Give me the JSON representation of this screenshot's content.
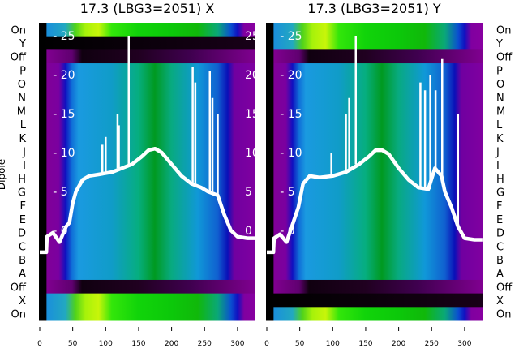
{
  "chart_data": [
    {
      "type": "heatmap",
      "title": "17.3 (LBG3=2051) X",
      "ylabel": "Dipole",
      "row_labels": [
        "On",
        "Y",
        "Off",
        "P",
        "O",
        "N",
        "M",
        "L",
        "K",
        "J",
        "I",
        "H",
        "G",
        "F",
        "E",
        "D",
        "C",
        "B",
        "A",
        "Off",
        "X",
        "On"
      ],
      "row_kinds": [
        "on",
        "dark",
        "off",
        "beam",
        "beam",
        "beam",
        "beam",
        "beam",
        "beam",
        "beam",
        "beam",
        "beam",
        "beam",
        "beam",
        "beam",
        "beam",
        "beam",
        "beam",
        "beam",
        "off",
        "on",
        "on"
      ],
      "xlim": [
        0,
        327
      ],
      "xticks": [
        "0",
        "50",
        "100",
        "150",
        "200",
        "250",
        "300"
      ],
      "line_ticks": [
        "0",
        "5",
        "10",
        "15",
        "20",
        "25"
      ],
      "line_ylim": [
        -11.5,
        26.7
      ],
      "line": [
        [
          0,
          -2.8
        ],
        [
          10,
          -2.8
        ],
        [
          11,
          -0.8
        ],
        [
          20,
          -0.3
        ],
        [
          30,
          -1.5
        ],
        [
          40,
          0.5
        ],
        [
          45,
          1
        ],
        [
          50,
          3.5
        ],
        [
          55,
          5
        ],
        [
          65,
          6.5
        ],
        [
          75,
          7
        ],
        [
          90,
          7.2
        ],
        [
          110,
          7.5
        ],
        [
          125,
          8
        ],
        [
          140,
          8.5
        ],
        [
          155,
          9.5
        ],
        [
          165,
          10.3
        ],
        [
          175,
          10.5
        ],
        [
          185,
          10
        ],
        [
          200,
          8.5
        ],
        [
          215,
          7
        ],
        [
          230,
          6
        ],
        [
          245,
          5.5
        ],
        [
          255,
          5
        ],
        [
          270,
          4.5
        ],
        [
          280,
          2
        ],
        [
          290,
          0
        ],
        [
          300,
          -0.8
        ],
        [
          315,
          -1
        ],
        [
          327,
          -1
        ]
      ],
      "spikes": [
        [
          95,
          11
        ],
        [
          100,
          12
        ],
        [
          118,
          15
        ],
        [
          120,
          13.5
        ],
        [
          135,
          25
        ],
        [
          232,
          21
        ],
        [
          236,
          19
        ],
        [
          258,
          20.5
        ],
        [
          262,
          17
        ],
        [
          270,
          15
        ]
      ]
    },
    {
      "type": "heatmap",
      "title": "17.3 (LBG3=2051) Y",
      "row_labels": [
        "On",
        "Y",
        "Off",
        "P",
        "O",
        "N",
        "M",
        "L",
        "K",
        "J",
        "I",
        "H",
        "G",
        "F",
        "E",
        "D",
        "C",
        "B",
        "A",
        "Off",
        "X",
        "On"
      ],
      "row_kinds": [
        "on",
        "on",
        "off",
        "beam",
        "beam",
        "beam",
        "beam",
        "beam",
        "beam",
        "beam",
        "beam",
        "beam",
        "beam",
        "beam",
        "beam",
        "beam",
        "beam",
        "beam",
        "beam",
        "off",
        "dark",
        "on"
      ],
      "xlim": [
        0,
        327
      ],
      "xticks": [
        "0",
        "50",
        "100",
        "150",
        "200",
        "250",
        "300"
      ],
      "line_ticks": [
        "0",
        "5",
        "10",
        "15",
        "20",
        "25"
      ],
      "line_ylim": [
        -11.5,
        26.7
      ],
      "line": [
        [
          0,
          -2.8
        ],
        [
          10,
          -2.8
        ],
        [
          11,
          -1
        ],
        [
          20,
          -0.5
        ],
        [
          30,
          -1.5
        ],
        [
          40,
          1
        ],
        [
          48,
          3
        ],
        [
          55,
          6
        ],
        [
          65,
          7
        ],
        [
          80,
          6.8
        ],
        [
          100,
          7
        ],
        [
          120,
          7.5
        ],
        [
          140,
          8.5
        ],
        [
          155,
          9.5
        ],
        [
          165,
          10.3
        ],
        [
          175,
          10.3
        ],
        [
          185,
          9.8
        ],
        [
          200,
          8
        ],
        [
          215,
          6.5
        ],
        [
          230,
          5.5
        ],
        [
          245,
          5.3
        ],
        [
          255,
          8
        ],
        [
          265,
          7
        ],
        [
          270,
          5
        ],
        [
          280,
          3
        ],
        [
          290,
          0.5
        ],
        [
          300,
          -1
        ],
        [
          315,
          -1.2
        ],
        [
          327,
          -1.2
        ]
      ],
      "spikes": [
        [
          98,
          10
        ],
        [
          120,
          15
        ],
        [
          125,
          17
        ],
        [
          135,
          25
        ],
        [
          233,
          19
        ],
        [
          240,
          18
        ],
        [
          248,
          20
        ],
        [
          256,
          18
        ],
        [
          266,
          22
        ],
        [
          290,
          15
        ]
      ]
    }
  ],
  "colors": {
    "on": [
      [
        0,
        "#000000"
      ],
      [
        11,
        "#000000"
      ],
      [
        12,
        "#1a8fdc"
      ],
      [
        40,
        "#22a8c0"
      ],
      [
        55,
        "#4fd21a"
      ],
      [
        70,
        "#a6f20a"
      ],
      [
        90,
        "#c8f50a"
      ],
      [
        110,
        "#33e60a"
      ],
      [
        150,
        "#11d40a"
      ],
      [
        200,
        "#0cc80a"
      ],
      [
        240,
        "#10b80a"
      ],
      [
        270,
        "#0aa878"
      ],
      [
        290,
        "#0a50d0"
      ],
      [
        300,
        "#1010c0"
      ],
      [
        310,
        "#8000a0"
      ],
      [
        327,
        "#8800a0"
      ]
    ],
    "dark": [
      [
        0,
        "#000000"
      ],
      [
        150,
        "#0a000a"
      ],
      [
        327,
        "#180018"
      ]
    ],
    "off": [
      [
        0,
        "#000000"
      ],
      [
        11,
        "#000000"
      ],
      [
        12,
        "#800090"
      ],
      [
        50,
        "#600070"
      ],
      [
        65,
        "#100010"
      ],
      [
        150,
        "#200020"
      ],
      [
        230,
        "#400050"
      ],
      [
        327,
        "#800090"
      ]
    ],
    "beam": [
      [
        0,
        "#000000"
      ],
      [
        11,
        "#000000"
      ],
      [
        12,
        "#800098"
      ],
      [
        30,
        "#7a00a0"
      ],
      [
        40,
        "#1010c0"
      ],
      [
        50,
        "#1070d8"
      ],
      [
        60,
        "#1a9ae0"
      ],
      [
        110,
        "#109cc8"
      ],
      [
        150,
        "#06ae80"
      ],
      [
        175,
        "#009a20"
      ],
      [
        200,
        "#08aa80"
      ],
      [
        240,
        "#1098d8"
      ],
      [
        270,
        "#1060d0"
      ],
      [
        285,
        "#0a10b8"
      ],
      [
        295,
        "#7000a0"
      ],
      [
        327,
        "#8000a0"
      ]
    ]
  }
}
